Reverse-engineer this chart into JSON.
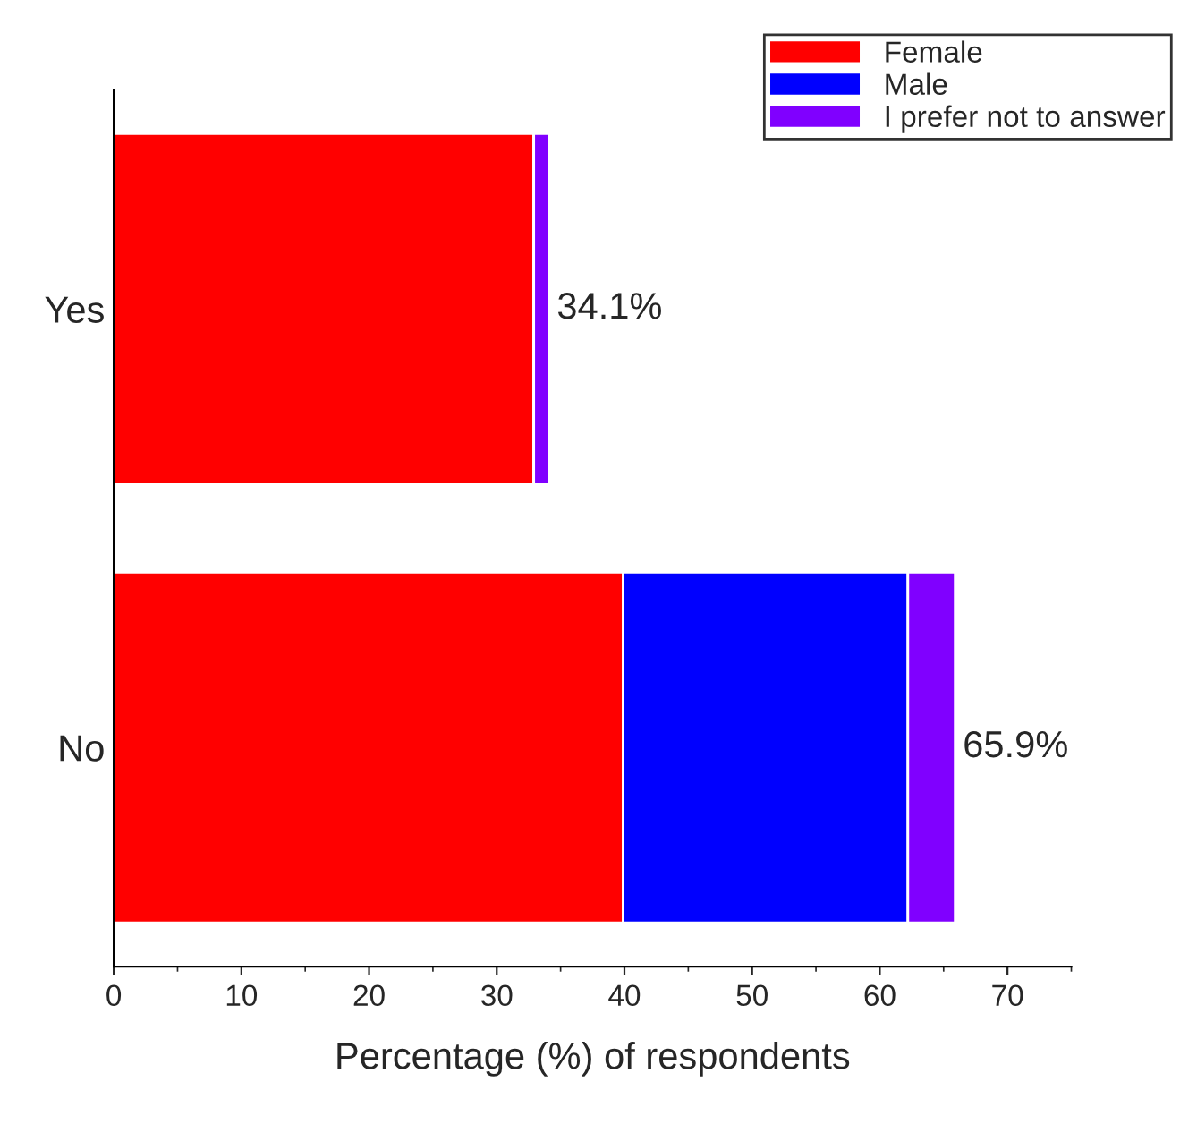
{
  "chart_data": {
    "type": "bar",
    "orientation": "horizontal",
    "stacked": true,
    "categories": [
      "Yes",
      "No"
    ],
    "series": [
      {
        "name": "Female",
        "color": "#ff0000",
        "values": [
          32.9,
          39.9
        ]
      },
      {
        "name": "Male",
        "color": "#0000ff",
        "values": [
          0,
          22.3
        ]
      },
      {
        "name": "I prefer not to answer",
        "color": "#8000ff",
        "values": [
          1.2,
          3.7
        ]
      }
    ],
    "totals": [
      "34.1%",
      "65.9%"
    ],
    "xlabel": "Percentage (%) of respondents",
    "xlim": [
      0,
      75
    ],
    "xticks": [
      0,
      10,
      20,
      30,
      40,
      50,
      60,
      70
    ],
    "grid": false,
    "legend": "top right"
  }
}
